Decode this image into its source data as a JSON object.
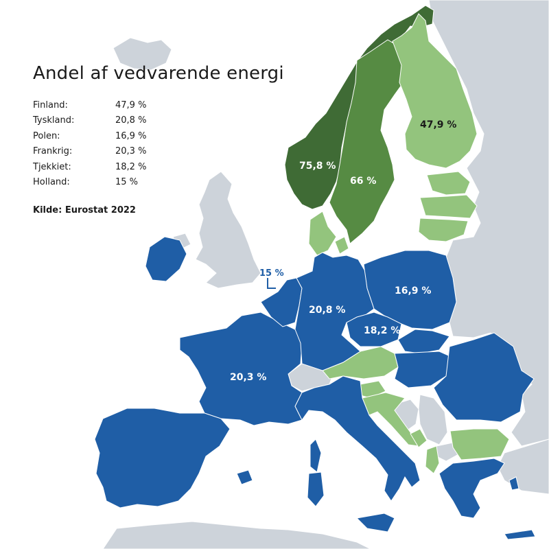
{
  "title": "Andel af vedvarende energi",
  "table": [
    {
      "country": "Finland:",
      "value": "47,9 %"
    },
    {
      "country": "Tyskland:",
      "value": "20,8 %"
    },
    {
      "country": "Polen:",
      "value": "16,9 %"
    },
    {
      "country": "Frankrig:",
      "value": "20,3 %"
    },
    {
      "country": "Tjekkiet:",
      "value": "18,2 %"
    },
    {
      "country": "Holland:",
      "value": "15 %"
    }
  ],
  "source": "Kilde: Eurostat 2022",
  "map_labels": {
    "norway": "75,8 %",
    "sweden": "66 %",
    "finland": "47,9 %",
    "germany": "20,8 %",
    "poland": "16,9 %",
    "czechia": "18,2 %",
    "france": "20,3 %",
    "netherlands": "15 %"
  },
  "colors": {
    "dark_green": "#3f6b35",
    "mid_green": "#568b43",
    "light_green": "#93c47d",
    "blue": "#1f5ea6",
    "grey": "#cdd3da",
    "border": "#ffffff",
    "background": "#ffffff"
  }
}
